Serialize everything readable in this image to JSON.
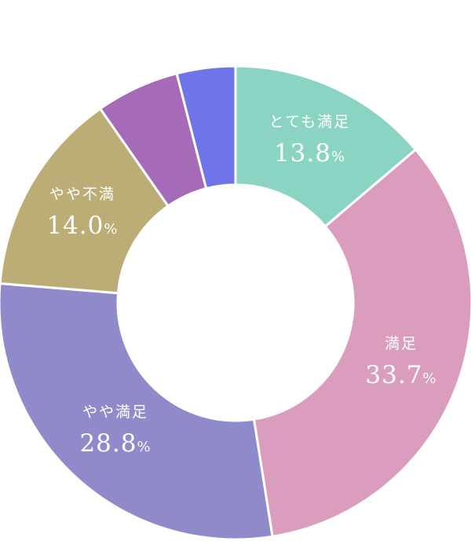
{
  "chart_data": {
    "type": "pie",
    "donut": true,
    "title": "",
    "start_angle_deg": 0,
    "direction": "clockwise",
    "unit": "%",
    "slices": [
      {
        "label": "とても満足",
        "value": 13.8,
        "display": "13.8",
        "color": "#8bd4c3",
        "labeled": true
      },
      {
        "label": "満足",
        "value": 33.7,
        "display": "33.7",
        "color": "#db9dbd",
        "labeled": true
      },
      {
        "label": "やや満足",
        "value": 28.8,
        "display": "28.8",
        "color": "#8f8bcb",
        "labeled": true
      },
      {
        "label": "やや不満",
        "value": 14.0,
        "display": "14.0",
        "color": "#bcad77",
        "labeled": true
      },
      {
        "label": "",
        "value": 5.7,
        "display": "",
        "color": "#a56ab8",
        "labeled": false
      },
      {
        "label": "",
        "value": 4.0,
        "display": "",
        "color": "#6f74e8",
        "labeled": false
      }
    ]
  }
}
